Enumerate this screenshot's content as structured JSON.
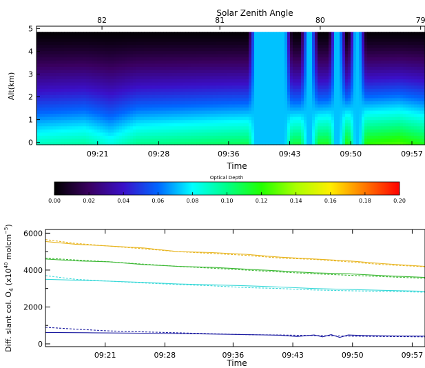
{
  "chart_data": [
    {
      "type": "heatmap",
      "title": "",
      "top_axis_label": "Solar Zenith Angle",
      "top_ticks": [
        "82",
        "81",
        "80",
        "79"
      ],
      "top_tick_values": [
        82,
        81,
        80,
        79
      ],
      "top_tick_times": [
        "09:22:00",
        "09:35:30",
        "09:47:00",
        "09:58:30"
      ],
      "xlabel": "Time",
      "x_ticks": [
        "09:21",
        "09:28",
        "09:36",
        "09:43",
        "09:50",
        "09:57"
      ],
      "x_range": [
        "09:14:30",
        "09:59:00"
      ],
      "ylabel": "Alt(km)",
      "y_ticks": [
        "0",
        "1",
        "2",
        "3",
        "4",
        "5"
      ],
      "ylim": [
        -0.1,
        5.1
      ],
      "data_top": 4.85,
      "colorbar": {
        "label": "Optical Depth",
        "range": [
          0.0,
          0.2
        ],
        "ticks": [
          "0.00",
          "0.02",
          "0.04",
          "0.06",
          "0.08",
          "0.10",
          "0.12",
          "0.14",
          "0.16",
          "0.18",
          "0.20"
        ]
      },
      "column_profile": [
        [
          "09:14:30",
          0.09
        ],
        [
          "09:20:00",
          0.095
        ],
        [
          "09:23:00",
          0.085
        ],
        [
          "09:26:00",
          0.098
        ],
        [
          "09:36:00",
          0.105
        ],
        [
          "09:45:00",
          0.11
        ],
        [
          "09:52:00",
          0.12
        ],
        [
          "09:56:00",
          0.125
        ],
        [
          "09:59:00",
          0.115
        ]
      ],
      "saturated_bands": [
        [
          "09:39:30",
          "09:43:00"
        ],
        [
          "09:45:30",
          "09:46:00"
        ],
        [
          "09:48:45",
          "09:49:15"
        ],
        [
          "09:51:00",
          "09:51:30"
        ]
      ],
      "saturated_value": 0.072
    },
    {
      "type": "line",
      "title": "",
      "xlabel": "Time",
      "x_ticks": [
        "09:21",
        "09:28",
        "09:36",
        "09:43",
        "09:50",
        "09:57"
      ],
      "x_range": [
        "09:14:30",
        "09:59:00"
      ],
      "ylabel": "Diff. slant col. O",
      "ylabel_sub": "4",
      "ylabel_unit_open": "(x10",
      "ylabel_exp": "40",
      "ylabel_unit_mid": " molcm",
      "ylabel_unit_exp": "−5",
      "ylabel_unit_close": ")",
      "y_ticks": [
        "0",
        "2000",
        "4000",
        "6000"
      ],
      "ylim": [
        -150,
        6200
      ],
      "series": [
        {
          "color": "#e8b520",
          "style": "solid",
          "x": [
            "09:14:30",
            "09:18:00",
            "09:22:00",
            "09:26:00",
            "09:30:00",
            "09:34:00",
            "09:38:00",
            "09:42:00",
            "09:46:00",
            "09:50:00",
            "09:54:00",
            "09:59:00"
          ],
          "y": [
            5550,
            5400,
            5300,
            5200,
            5000,
            4950,
            4850,
            4700,
            4600,
            4500,
            4350,
            4200
          ]
        },
        {
          "color": "#e8b520",
          "style": "dashed",
          "x": [
            "09:14:30",
            "09:18:00",
            "09:22:00",
            "09:26:00",
            "09:30:00",
            "09:34:00",
            "09:38:00",
            "09:42:00",
            "09:46:00",
            "09:50:00",
            "09:54:00",
            "09:59:00"
          ],
          "y": [
            5650,
            5450,
            5300,
            5150,
            5000,
            4900,
            4800,
            4650,
            4580,
            4450,
            4300,
            4180
          ]
        },
        {
          "color": "#3cb834",
          "style": "solid",
          "x": [
            "09:14:30",
            "09:18:00",
            "09:22:00",
            "09:26:00",
            "09:30:00",
            "09:34:00",
            "09:38:00",
            "09:42:00",
            "09:46:00",
            "09:50:00",
            "09:54:00",
            "09:59:00"
          ],
          "y": [
            4600,
            4500,
            4450,
            4300,
            4200,
            4150,
            4050,
            3950,
            3850,
            3800,
            3700,
            3600
          ]
        },
        {
          "color": "#3cb834",
          "style": "dashed",
          "x": [
            "09:14:30",
            "09:18:00",
            "09:22:00",
            "09:26:00",
            "09:30:00",
            "09:34:00",
            "09:38:00",
            "09:42:00",
            "09:46:00",
            "09:50:00",
            "09:54:00",
            "09:59:00"
          ],
          "y": [
            4650,
            4550,
            4450,
            4320,
            4200,
            4100,
            4000,
            3900,
            3800,
            3720,
            3650,
            3550
          ]
        },
        {
          "color": "#38d8d8",
          "style": "solid",
          "x": [
            "09:14:30",
            "09:18:00",
            "09:22:00",
            "09:26:00",
            "09:30:00",
            "09:34:00",
            "09:38:00",
            "09:42:00",
            "09:46:00",
            "09:50:00",
            "09:54:00",
            "09:59:00"
          ],
          "y": [
            3500,
            3450,
            3400,
            3330,
            3250,
            3200,
            3150,
            3080,
            3000,
            2950,
            2900,
            2850
          ]
        },
        {
          "color": "#38d8d8",
          "style": "dashed",
          "x": [
            "09:14:30",
            "09:18:00",
            "09:22:00",
            "09:26:00",
            "09:30:00",
            "09:34:00",
            "09:38:00",
            "09:42:00",
            "09:46:00",
            "09:50:00",
            "09:54:00",
            "09:59:00"
          ],
          "y": [
            3700,
            3500,
            3400,
            3300,
            3220,
            3150,
            3050,
            3000,
            2920,
            2880,
            2850,
            2800
          ]
        },
        {
          "color": "#1a1aa0",
          "style": "solid",
          "x": [
            "09:14:30",
            "09:20:00",
            "09:26:00",
            "09:32:00",
            "09:38:00",
            "09:42:00",
            "09:44:00",
            "09:46:00",
            "09:47:00",
            "09:48:00",
            "09:49:00",
            "09:50:00",
            "09:52:00",
            "09:56:00",
            "09:59:00"
          ],
          "y": [
            620,
            600,
            580,
            550,
            500,
            470,
            400,
            480,
            380,
            500,
            350,
            480,
            450,
            430,
            420
          ]
        },
        {
          "color": "#1a1aa0",
          "style": "dashed",
          "x": [
            "09:14:30",
            "09:18:00",
            "09:22:00",
            "09:26:00",
            "09:30:00",
            "09:34:00",
            "09:38:00",
            "09:42:00",
            "09:46:00",
            "09:50:00",
            "09:54:00",
            "09:59:00"
          ],
          "y": [
            900,
            800,
            700,
            650,
            600,
            550,
            500,
            480,
            450,
            420,
            400,
            380
          ]
        }
      ]
    }
  ]
}
